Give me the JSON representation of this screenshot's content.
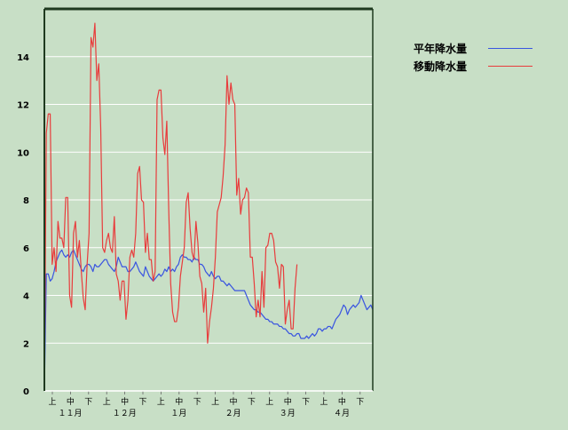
{
  "chart_data": {
    "type": "line",
    "ylim": [
      0,
      16
    ],
    "yticks": [
      "0",
      "2",
      "4",
      "6",
      "8",
      "10",
      "12",
      "14"
    ],
    "grid": true,
    "legend_placement": "top-right, outside plot",
    "x_period_labels": [
      "上",
      "中",
      "下",
      "上",
      "中",
      "下",
      "上",
      "中",
      "下",
      "上",
      "中",
      "下",
      "上",
      "中",
      "下",
      "上",
      "中",
      "下"
    ],
    "x_month_labels": [
      "１１月",
      "１２月",
      "１月",
      "２月",
      "３月",
      "４月"
    ],
    "series": [
      {
        "name": "平年降水量",
        "color": "#3a55e0",
        "values": [
          0,
          4.9,
          4.9,
          4.6,
          4.7,
          5.0,
          5.4,
          5.6,
          5.8,
          5.9,
          5.7,
          5.6,
          5.7,
          5.6,
          5.8,
          5.9,
          5.7,
          5.5,
          5.3,
          5.1,
          5.0,
          5.2,
          5.3,
          5.3,
          5.2,
          5.0,
          5.3,
          5.2,
          5.2,
          5.3,
          5.4,
          5.5,
          5.5,
          5.3,
          5.2,
          5.1,
          5.0,
          5.2,
          5.6,
          5.4,
          5.2,
          5.2,
          5.2,
          5.0,
          5.0,
          5.1,
          5.2,
          5.4,
          5.2,
          5.0,
          4.9,
          4.8,
          5.2,
          5.0,
          4.8,
          4.7,
          4.6,
          4.7,
          4.8,
          4.9,
          4.8,
          4.9,
          5.1,
          5.0,
          5.2,
          5.0,
          5.1,
          5.0,
          5.2,
          5.3,
          5.6,
          5.7,
          5.6,
          5.6,
          5.5,
          5.5,
          5.4,
          5.6,
          5.5,
          5.5,
          5.3,
          5.3,
          5.2,
          5.0,
          4.9,
          4.8,
          5.0,
          4.8,
          4.7,
          4.8,
          4.8,
          4.6,
          4.6,
          4.5,
          4.4,
          4.5,
          4.4,
          4.3,
          4.2,
          4.2,
          4.2,
          4.2,
          4.2,
          4.2,
          4.0,
          3.8,
          3.6,
          3.5,
          3.4,
          3.4,
          3.3,
          3.3,
          3.2,
          3.1,
          3.0,
          3.0,
          2.9,
          2.9,
          2.8,
          2.8,
          2.8,
          2.7,
          2.7,
          2.6,
          2.6,
          2.5,
          2.4,
          2.4,
          2.3,
          2.3,
          2.4,
          2.4,
          2.2,
          2.2,
          2.2,
          2.3,
          2.2,
          2.3,
          2.4,
          2.3,
          2.4,
          2.6,
          2.6,
          2.5,
          2.6,
          2.6,
          2.7,
          2.7,
          2.6,
          2.8,
          3.0,
          3.1,
          3.2,
          3.4,
          3.6,
          3.5,
          3.2,
          3.4,
          3.5,
          3.6,
          3.5,
          3.6,
          3.7,
          4.0,
          3.8,
          3.6,
          3.4,
          3.5,
          3.6,
          3.4
        ]
      },
      {
        "name": "移動降水量",
        "color": "#e83c3c",
        "values": [
          0,
          10.8,
          11.6,
          11.6,
          5.3,
          6.0,
          5.0,
          7.1,
          6.4,
          6.4,
          6.0,
          8.1,
          8.1,
          4.0,
          3.5,
          6.6,
          7.1,
          5.6,
          6.3,
          5.0,
          3.9,
          3.4,
          5.3,
          6.6,
          14.8,
          14.4,
          15.4,
          13.0,
          13.7,
          11.0,
          6.0,
          5.8,
          6.3,
          6.6,
          6.0,
          5.8,
          7.3,
          4.9,
          4.6,
          3.8,
          4.6,
          4.6,
          3.0,
          3.8,
          5.6,
          5.9,
          5.6,
          6.6,
          9.1,
          9.4,
          8.0,
          7.9,
          5.8,
          6.6,
          5.5,
          5.5,
          4.6,
          5.0,
          12.2,
          12.6,
          12.6,
          10.6,
          9.9,
          11.3,
          7.6,
          4.5,
          3.3,
          2.9,
          2.9,
          3.5,
          4.8,
          5.4,
          6.0,
          7.9,
          8.3,
          6.8,
          5.8,
          5.5,
          7.1,
          6.2,
          4.8,
          4.5,
          3.3,
          4.3,
          2.0,
          2.9,
          3.5,
          4.3,
          5.6,
          7.5,
          7.8,
          8.1,
          9.0,
          10.3,
          13.2,
          12.0,
          12.9,
          12.2,
          12.0,
          8.2,
          8.9,
          7.4,
          8.0,
          8.1,
          8.5,
          8.3,
          5.6,
          5.6,
          4.5,
          3.1,
          3.8,
          3.1,
          5.0,
          3.5,
          6.0,
          6.1,
          6.6,
          6.6,
          6.3,
          5.4,
          5.2,
          4.3,
          5.3,
          5.2,
          2.8,
          3.4,
          3.8,
          2.6,
          2.6,
          4.3,
          5.3
        ]
      }
    ]
  }
}
